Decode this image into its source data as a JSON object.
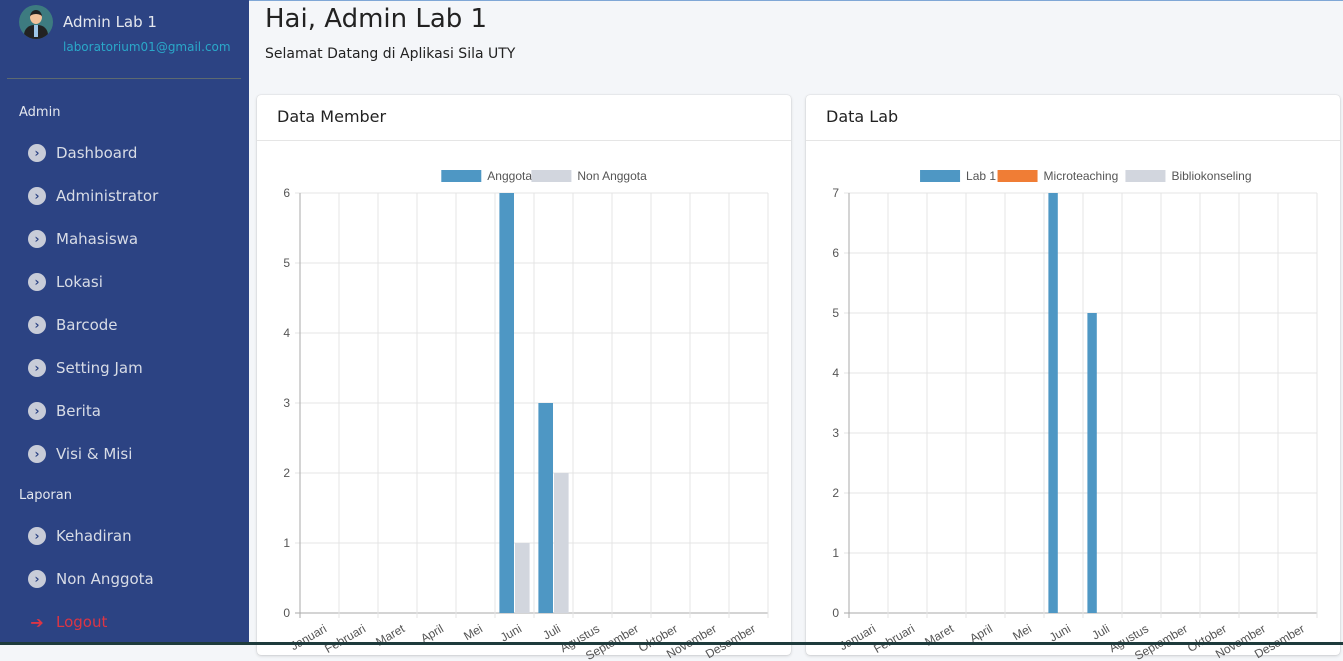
{
  "user": {
    "name": "Admin Lab 1",
    "email": "laboratorium01@gmail.com"
  },
  "sidebar": {
    "sections": [
      "Admin",
      "Laporan"
    ],
    "admin_items": [
      {
        "label": "Dashboard"
      },
      {
        "label": "Administrator"
      },
      {
        "label": "Mahasiswa"
      },
      {
        "label": "Lokasi"
      },
      {
        "label": "Barcode"
      },
      {
        "label": "Setting Jam"
      },
      {
        "label": "Berita"
      },
      {
        "label": "Visi & Misi"
      }
    ],
    "laporan_items": [
      {
        "label": "Kehadiran"
      },
      {
        "label": "Non Anggota"
      }
    ],
    "logout": "Logout",
    "item_icon": "chevron-circle-right-icon",
    "logout_icon": "sign-out-icon"
  },
  "header": {
    "title": "Hai, Admin Lab 1",
    "subtitle": "Selamat Datang di Aplikasi Sila UTY"
  },
  "cards": {
    "member": "Data Member",
    "lab": "Data Lab"
  },
  "chart_data": [
    {
      "type": "bar",
      "title": "",
      "categories": [
        "Januari",
        "Februari",
        "Maret",
        "April",
        "Mei",
        "Juni",
        "Juli",
        "Agustus",
        "September",
        "Oktober",
        "November",
        "Desember"
      ],
      "ylim": [
        0,
        6
      ],
      "yticks": [
        0,
        1,
        2,
        3,
        4,
        5,
        6
      ],
      "legend": "top",
      "grid": true,
      "series": [
        {
          "name": "Anggota",
          "color": "#4e97c4",
          "values": [
            0,
            0,
            0,
            0,
            0,
            6,
            3,
            0,
            0,
            0,
            0,
            0
          ]
        },
        {
          "name": "Non Anggota",
          "color": "#d2d6de",
          "values": [
            0,
            0,
            0,
            0,
            0,
            1,
            2,
            0,
            0,
            0,
            0,
            0
          ]
        }
      ]
    },
    {
      "type": "bar",
      "title": "",
      "categories": [
        "Januari",
        "Februari",
        "Maret",
        "April",
        "Mei",
        "Juni",
        "Juli",
        "Agustus",
        "September",
        "Oktober",
        "November",
        "Desember"
      ],
      "ylim": [
        0,
        7
      ],
      "yticks": [
        0,
        1,
        2,
        3,
        4,
        5,
        6,
        7
      ],
      "legend": "top",
      "grid": true,
      "series": [
        {
          "name": "Lab 1",
          "color": "#4e97c4",
          "values": [
            0,
            0,
            0,
            0,
            0,
            7,
            5,
            0,
            0,
            0,
            0,
            0
          ]
        },
        {
          "name": "Microteaching",
          "color": "#f07d35",
          "values": [
            0,
            0,
            0,
            0,
            0,
            0,
            0,
            0,
            0,
            0,
            0,
            0
          ]
        },
        {
          "name": "Bibliokonseling",
          "color": "#d2d6de",
          "values": [
            0,
            0,
            0,
            0,
            0,
            0,
            0,
            0,
            0,
            0,
            0,
            0
          ]
        }
      ]
    }
  ]
}
